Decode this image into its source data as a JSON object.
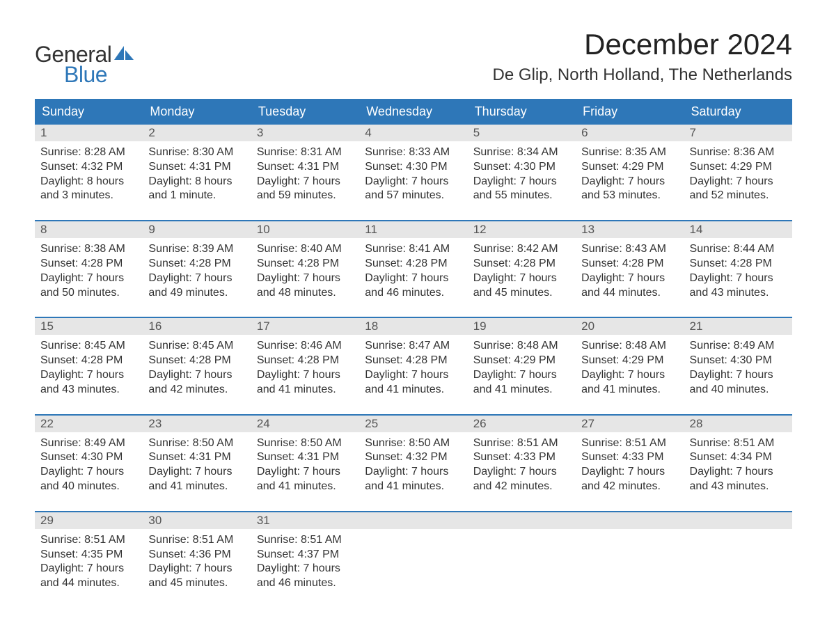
{
  "logo": {
    "text1": "General",
    "text2": "Blue",
    "text1_color": "#333333",
    "text2_color": "#2e77b8",
    "sail_color": "#2e77b8"
  },
  "header": {
    "month_title": "December 2024",
    "location": "De Glip, North Holland, The Netherlands"
  },
  "styling": {
    "header_bg": "#2e77b8",
    "header_text_color": "#ffffff",
    "daynum_bg": "#e6e6e6",
    "daynum_color": "#555555",
    "week_border_color": "#2e77b8",
    "body_text_color": "#333333",
    "page_bg": "#ffffff",
    "title_fontsize": 42,
    "location_fontsize": 24,
    "header_fontsize": 18,
    "daynum_fontsize": 17,
    "content_fontsize": 16
  },
  "day_names": [
    "Sunday",
    "Monday",
    "Tuesday",
    "Wednesday",
    "Thursday",
    "Friday",
    "Saturday"
  ],
  "weeks": [
    [
      {
        "num": "1",
        "sunrise": "Sunrise: 8:28 AM",
        "sunset": "Sunset: 4:32 PM",
        "d1": "Daylight: 8 hours",
        "d2": "and 3 minutes."
      },
      {
        "num": "2",
        "sunrise": "Sunrise: 8:30 AM",
        "sunset": "Sunset: 4:31 PM",
        "d1": "Daylight: 8 hours",
        "d2": "and 1 minute."
      },
      {
        "num": "3",
        "sunrise": "Sunrise: 8:31 AM",
        "sunset": "Sunset: 4:31 PM",
        "d1": "Daylight: 7 hours",
        "d2": "and 59 minutes."
      },
      {
        "num": "4",
        "sunrise": "Sunrise: 8:33 AM",
        "sunset": "Sunset: 4:30 PM",
        "d1": "Daylight: 7 hours",
        "d2": "and 57 minutes."
      },
      {
        "num": "5",
        "sunrise": "Sunrise: 8:34 AM",
        "sunset": "Sunset: 4:30 PM",
        "d1": "Daylight: 7 hours",
        "d2": "and 55 minutes."
      },
      {
        "num": "6",
        "sunrise": "Sunrise: 8:35 AM",
        "sunset": "Sunset: 4:29 PM",
        "d1": "Daylight: 7 hours",
        "d2": "and 53 minutes."
      },
      {
        "num": "7",
        "sunrise": "Sunrise: 8:36 AM",
        "sunset": "Sunset: 4:29 PM",
        "d1": "Daylight: 7 hours",
        "d2": "and 52 minutes."
      }
    ],
    [
      {
        "num": "8",
        "sunrise": "Sunrise: 8:38 AM",
        "sunset": "Sunset: 4:28 PM",
        "d1": "Daylight: 7 hours",
        "d2": "and 50 minutes."
      },
      {
        "num": "9",
        "sunrise": "Sunrise: 8:39 AM",
        "sunset": "Sunset: 4:28 PM",
        "d1": "Daylight: 7 hours",
        "d2": "and 49 minutes."
      },
      {
        "num": "10",
        "sunrise": "Sunrise: 8:40 AM",
        "sunset": "Sunset: 4:28 PM",
        "d1": "Daylight: 7 hours",
        "d2": "and 48 minutes."
      },
      {
        "num": "11",
        "sunrise": "Sunrise: 8:41 AM",
        "sunset": "Sunset: 4:28 PM",
        "d1": "Daylight: 7 hours",
        "d2": "and 46 minutes."
      },
      {
        "num": "12",
        "sunrise": "Sunrise: 8:42 AM",
        "sunset": "Sunset: 4:28 PM",
        "d1": "Daylight: 7 hours",
        "d2": "and 45 minutes."
      },
      {
        "num": "13",
        "sunrise": "Sunrise: 8:43 AM",
        "sunset": "Sunset: 4:28 PM",
        "d1": "Daylight: 7 hours",
        "d2": "and 44 minutes."
      },
      {
        "num": "14",
        "sunrise": "Sunrise: 8:44 AM",
        "sunset": "Sunset: 4:28 PM",
        "d1": "Daylight: 7 hours",
        "d2": "and 43 minutes."
      }
    ],
    [
      {
        "num": "15",
        "sunrise": "Sunrise: 8:45 AM",
        "sunset": "Sunset: 4:28 PM",
        "d1": "Daylight: 7 hours",
        "d2": "and 43 minutes."
      },
      {
        "num": "16",
        "sunrise": "Sunrise: 8:45 AM",
        "sunset": "Sunset: 4:28 PM",
        "d1": "Daylight: 7 hours",
        "d2": "and 42 minutes."
      },
      {
        "num": "17",
        "sunrise": "Sunrise: 8:46 AM",
        "sunset": "Sunset: 4:28 PM",
        "d1": "Daylight: 7 hours",
        "d2": "and 41 minutes."
      },
      {
        "num": "18",
        "sunrise": "Sunrise: 8:47 AM",
        "sunset": "Sunset: 4:28 PM",
        "d1": "Daylight: 7 hours",
        "d2": "and 41 minutes."
      },
      {
        "num": "19",
        "sunrise": "Sunrise: 8:48 AM",
        "sunset": "Sunset: 4:29 PM",
        "d1": "Daylight: 7 hours",
        "d2": "and 41 minutes."
      },
      {
        "num": "20",
        "sunrise": "Sunrise: 8:48 AM",
        "sunset": "Sunset: 4:29 PM",
        "d1": "Daylight: 7 hours",
        "d2": "and 41 minutes."
      },
      {
        "num": "21",
        "sunrise": "Sunrise: 8:49 AM",
        "sunset": "Sunset: 4:30 PM",
        "d1": "Daylight: 7 hours",
        "d2": "and 40 minutes."
      }
    ],
    [
      {
        "num": "22",
        "sunrise": "Sunrise: 8:49 AM",
        "sunset": "Sunset: 4:30 PM",
        "d1": "Daylight: 7 hours",
        "d2": "and 40 minutes."
      },
      {
        "num": "23",
        "sunrise": "Sunrise: 8:50 AM",
        "sunset": "Sunset: 4:31 PM",
        "d1": "Daylight: 7 hours",
        "d2": "and 41 minutes."
      },
      {
        "num": "24",
        "sunrise": "Sunrise: 8:50 AM",
        "sunset": "Sunset: 4:31 PM",
        "d1": "Daylight: 7 hours",
        "d2": "and 41 minutes."
      },
      {
        "num": "25",
        "sunrise": "Sunrise: 8:50 AM",
        "sunset": "Sunset: 4:32 PM",
        "d1": "Daylight: 7 hours",
        "d2": "and 41 minutes."
      },
      {
        "num": "26",
        "sunrise": "Sunrise: 8:51 AM",
        "sunset": "Sunset: 4:33 PM",
        "d1": "Daylight: 7 hours",
        "d2": "and 42 minutes."
      },
      {
        "num": "27",
        "sunrise": "Sunrise: 8:51 AM",
        "sunset": "Sunset: 4:33 PM",
        "d1": "Daylight: 7 hours",
        "d2": "and 42 minutes."
      },
      {
        "num": "28",
        "sunrise": "Sunrise: 8:51 AM",
        "sunset": "Sunset: 4:34 PM",
        "d1": "Daylight: 7 hours",
        "d2": "and 43 minutes."
      }
    ],
    [
      {
        "num": "29",
        "sunrise": "Sunrise: 8:51 AM",
        "sunset": "Sunset: 4:35 PM",
        "d1": "Daylight: 7 hours",
        "d2": "and 44 minutes."
      },
      {
        "num": "30",
        "sunrise": "Sunrise: 8:51 AM",
        "sunset": "Sunset: 4:36 PM",
        "d1": "Daylight: 7 hours",
        "d2": "and 45 minutes."
      },
      {
        "num": "31",
        "sunrise": "Sunrise: 8:51 AM",
        "sunset": "Sunset: 4:37 PM",
        "d1": "Daylight: 7 hours",
        "d2": "and 46 minutes."
      },
      null,
      null,
      null,
      null
    ]
  ]
}
